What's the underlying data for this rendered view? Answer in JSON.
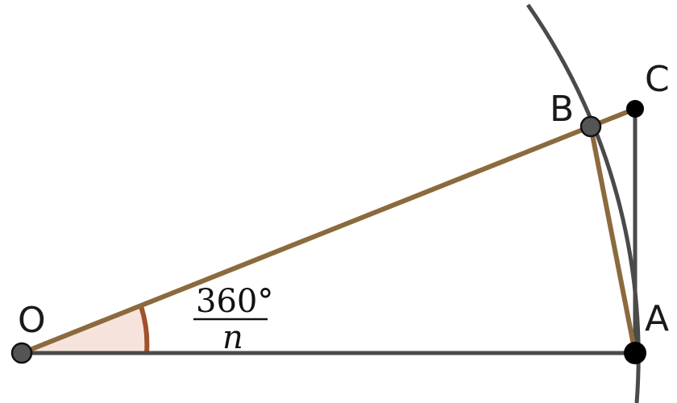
{
  "points": {
    "O": "O",
    "A": "A",
    "B": "B",
    "C": "C"
  },
  "angle_label": {
    "numerator": "360°",
    "denominator": "n"
  },
  "colors": {
    "dark_line": "#4a4a4a",
    "brown_line": "#8b6a3e",
    "angle_arc": "#a0522d",
    "angle_fill": "#f6e4dc",
    "point_dark": "#000000",
    "point_gray": "#555555"
  }
}
